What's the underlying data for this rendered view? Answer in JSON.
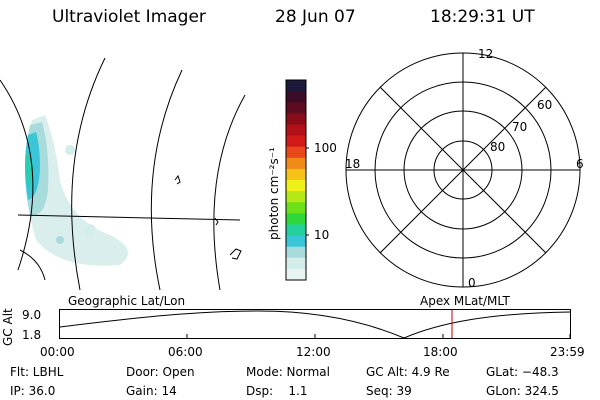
{
  "header": {
    "title": "Ultraviolet Imager",
    "date": "28 Jun 07",
    "time": "18:29:31 UT"
  },
  "colorbar": {
    "unit_label": "photon cm⁻²s⁻¹",
    "ticks": [
      "100",
      "10"
    ],
    "colors": [
      "#1c1a3c",
      "#3a0c28",
      "#5c0c20",
      "#8a0c18",
      "#b3101a",
      "#d11a18",
      "#e8481a",
      "#f08a18",
      "#f6c218",
      "#eef018",
      "#b6e818",
      "#6ee01a",
      "#2ed83a",
      "#22d09c",
      "#3ac6d8",
      "#a8dcdc",
      "#d4ecea",
      "#e8f4f2"
    ]
  },
  "polar_plot": {
    "hour_labels": {
      "top": "12",
      "left": "18",
      "right": "6",
      "bottom": "0"
    },
    "lat_labels": [
      "60",
      "70",
      "80"
    ]
  },
  "orbit_panel": {
    "ylabel": "GC Alt",
    "ymax": "9.0",
    "ymin": "1.8",
    "left_title": "Geographic Lat/Lon",
    "right_title": "Apex MLat/MLT",
    "xticks": [
      "00:00",
      "06:00",
      "12:00",
      "18:00",
      "23:59"
    ],
    "marker_color": "#cc0000"
  },
  "info": {
    "flt": "Flt: LBHL",
    "ip": "IP: 36.0",
    "door": "Door: Open",
    "gain": "Gain: 14",
    "mode": "Mode: Normal",
    "dsp": "Dsp:    1.1",
    "gcalt": "GC Alt: 4.9 Re",
    "seq": "Seq: 39",
    "glat": "GLat: −48.3",
    "glon": "GLon: 324.5"
  }
}
